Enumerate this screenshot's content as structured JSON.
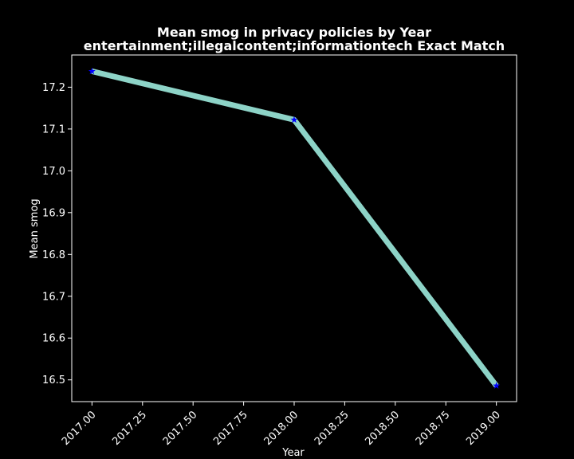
{
  "chart_data": {
    "type": "line",
    "title": "Mean smog in privacy policies by Year",
    "subtitle": "entertainment;illegalcontent;informationtech Exact Match",
    "xlabel": "Year",
    "ylabel": "Mean smog",
    "xlim": [
      2016.9,
      2019.1
    ],
    "ylim": [
      16.448,
      17.277
    ],
    "xticks": [
      2017.0,
      2017.25,
      2017.5,
      2017.75,
      2018.0,
      2018.25,
      2018.5,
      2018.75,
      2019.0
    ],
    "xtick_labels": [
      "2017.00",
      "2017.25",
      "2017.50",
      "2017.75",
      "2018.00",
      "2018.25",
      "2018.50",
      "2018.75",
      "2019.00"
    ],
    "yticks": [
      16.5,
      16.6,
      16.7,
      16.8,
      16.9,
      17.0,
      17.1,
      17.2
    ],
    "ytick_labels": [
      "16.5",
      "16.6",
      "16.7",
      "16.8",
      "16.9",
      "17.0",
      "17.1",
      "17.2"
    ],
    "x": [
      2017,
      2018,
      2019
    ],
    "series": [
      {
        "values": [
          17.238,
          17.122,
          16.486
        ]
      }
    ],
    "line_color": "#8dd3c7",
    "marker_color": "#0000ff",
    "background_color": "#000000",
    "grid": false,
    "legend": "none"
  }
}
